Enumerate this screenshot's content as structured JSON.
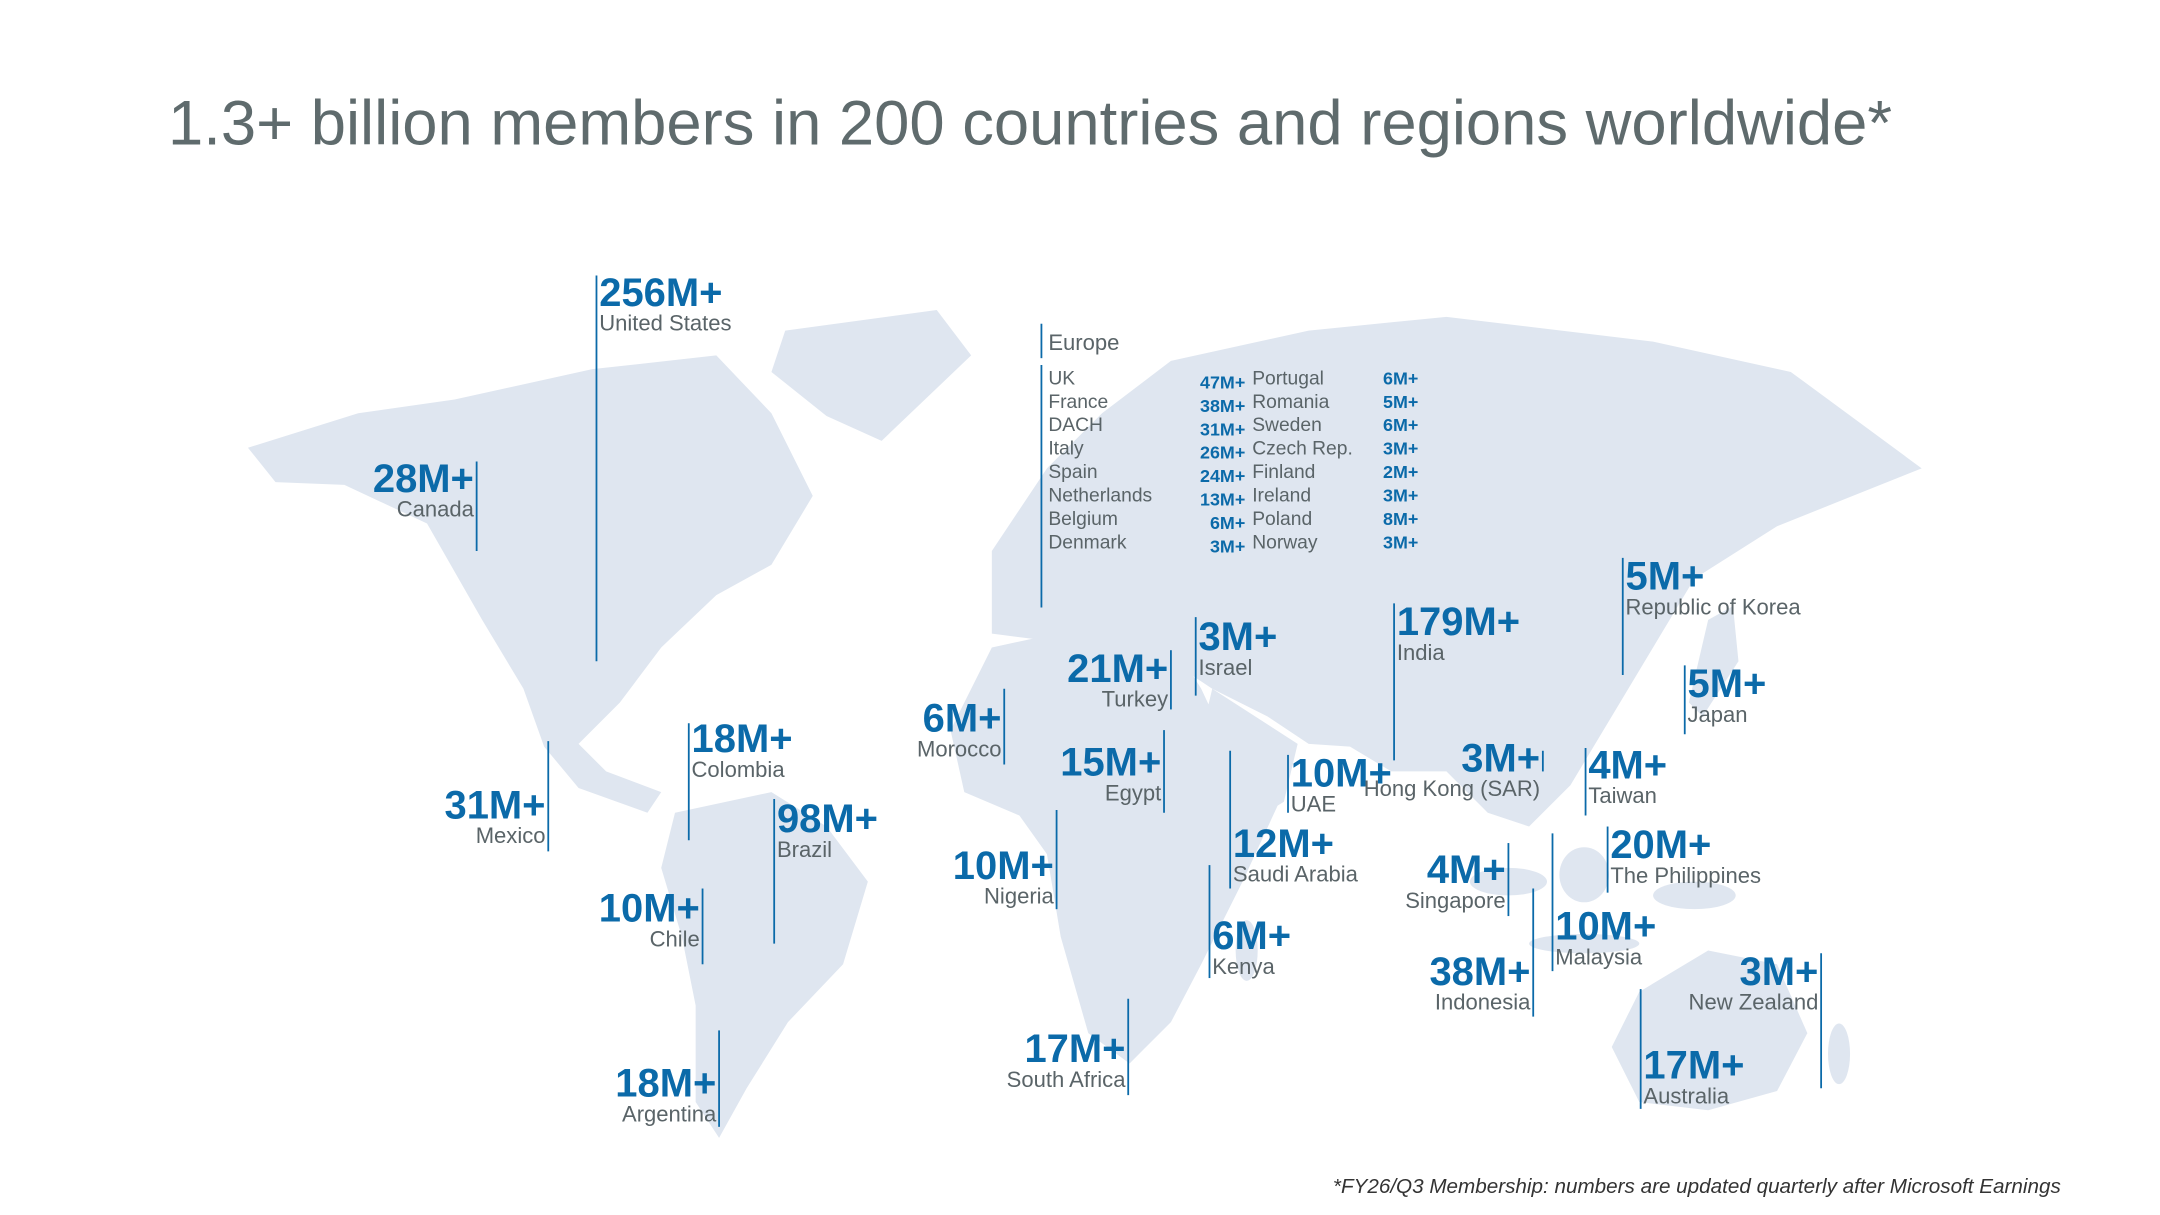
{
  "title": "1.3+ billion members in 200 countries and regions worldwide*",
  "regions": [
    {
      "value": "256M+",
      "name": "United States"
    },
    {
      "value": "28M+",
      "name": "Canada"
    },
    {
      "value": "31M+",
      "name": "Mexico"
    },
    {
      "value": "18M+",
      "name": "Colombia"
    },
    {
      "value": "98M+",
      "name": "Brazil"
    },
    {
      "value": "10M+",
      "name": "Chile"
    },
    {
      "value": "18M+",
      "name": "Argentina"
    },
    {
      "value": "6M+",
      "name": "Morocco"
    },
    {
      "value": "21M+",
      "name": "Turkey"
    },
    {
      "value": "3M+",
      "name": "Israel"
    },
    {
      "value": "15M+",
      "name": "Egypt"
    },
    {
      "value": "10M+",
      "name": "Nigeria"
    },
    {
      "value": "17M+",
      "name": "South Africa"
    },
    {
      "value": "6M+",
      "name": "Kenya"
    },
    {
      "value": "12M+",
      "name": "Saudi Arabia"
    },
    {
      "value": "10M+",
      "name": "UAE"
    },
    {
      "value": "179M+",
      "name": "India"
    },
    {
      "value": "3M+",
      "name": "Hong Kong (SAR)"
    },
    {
      "value": "5M+",
      "name": "Republic of Korea"
    },
    {
      "value": "5M+",
      "name": "Japan"
    },
    {
      "value": "4M+",
      "name": "Taiwan"
    },
    {
      "value": "20M+",
      "name": "The Philippines"
    },
    {
      "value": "4M+",
      "name": "Singapore"
    },
    {
      "value": "10M+",
      "name": "Malaysia"
    },
    {
      "value": "38M+",
      "name": "Indonesia"
    },
    {
      "value": "17M+",
      "name": "Australia"
    },
    {
      "value": "3M+",
      "name": "New Zealand"
    }
  ],
  "europe": {
    "label": "Europe",
    "rows": [
      {
        "name": "UK",
        "value": "47M+"
      },
      {
        "name": "France",
        "value": "38M+"
      },
      {
        "name": "DACH",
        "value": "31M+"
      },
      {
        "name": "Italy",
        "value": "26M+"
      },
      {
        "name": "Spain",
        "value": "24M+"
      },
      {
        "name": "Netherlands",
        "value": "13M+"
      },
      {
        "name": "Belgium",
        "value": "6M+"
      },
      {
        "name": "Denmark",
        "value": "3M+"
      },
      {
        "name": "Portugal",
        "value": "6M+"
      },
      {
        "name": "Romania",
        "value": "5M+"
      },
      {
        "name": "Sweden",
        "value": "6M+"
      },
      {
        "name": "Czech Rep.",
        "value": "3M+"
      },
      {
        "name": "Finland",
        "value": "2M+"
      },
      {
        "name": "Ireland",
        "value": "3M+"
      },
      {
        "name": "Poland",
        "value": "8M+"
      },
      {
        "name": "Norway",
        "value": "3M+"
      }
    ]
  },
  "footnote": "*FY26/Q3 Membership: numbers are updated quarterly after Microsoft Earnings"
}
